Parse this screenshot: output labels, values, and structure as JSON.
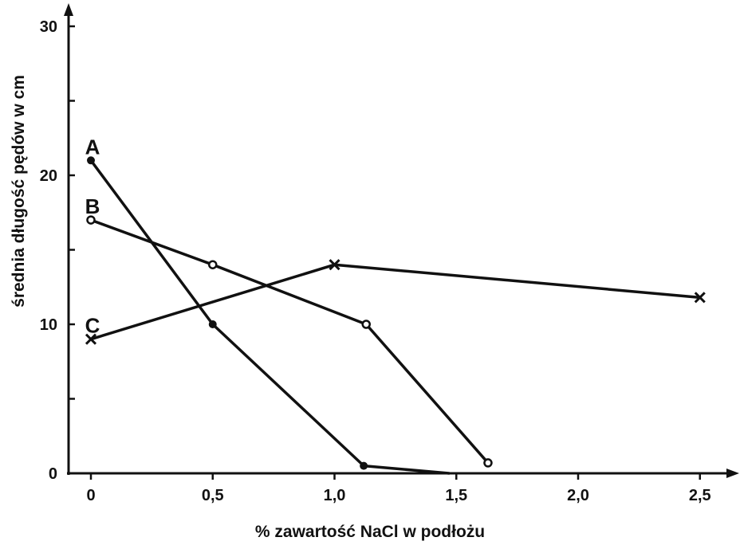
{
  "chart_data": {
    "type": "line",
    "title": "",
    "xlabel": "% zawartość NaCl w podłożu",
    "ylabel": "średnia długość pędów w cm",
    "xlim": [
      0,
      2.6
    ],
    "ylim": [
      0,
      30
    ],
    "x_ticks": [
      {
        "value": 0,
        "label": "0"
      },
      {
        "value": 0.5,
        "label": "0,5"
      },
      {
        "value": 1.0,
        "label": "1,0"
      },
      {
        "value": 1.5,
        "label": "1,5"
      },
      {
        "value": 2.0,
        "label": "2,0"
      },
      {
        "value": 2.5,
        "label": "2,5"
      }
    ],
    "y_ticks": [
      {
        "value": 0,
        "label": "0"
      },
      {
        "value": 5,
        "label": ""
      },
      {
        "value": 10,
        "label": "10"
      },
      {
        "value": 15,
        "label": ""
      },
      {
        "value": 20,
        "label": "20"
      },
      {
        "value": 25,
        "label": ""
      },
      {
        "value": 30,
        "label": "30"
      }
    ],
    "grid": false,
    "series": [
      {
        "name": "A",
        "marker": "filled-circle",
        "x": [
          0,
          0.5,
          1.12,
          1.47
        ],
        "y": [
          21,
          10,
          0.5,
          0
        ]
      },
      {
        "name": "B",
        "marker": "open-circle",
        "x": [
          0,
          0.5,
          1.13,
          1.63
        ],
        "y": [
          17,
          14,
          10,
          0.7
        ]
      },
      {
        "name": "C",
        "marker": "cross",
        "x": [
          0,
          1.0,
          2.5
        ],
        "y": [
          9,
          14,
          11.8
        ]
      }
    ]
  }
}
